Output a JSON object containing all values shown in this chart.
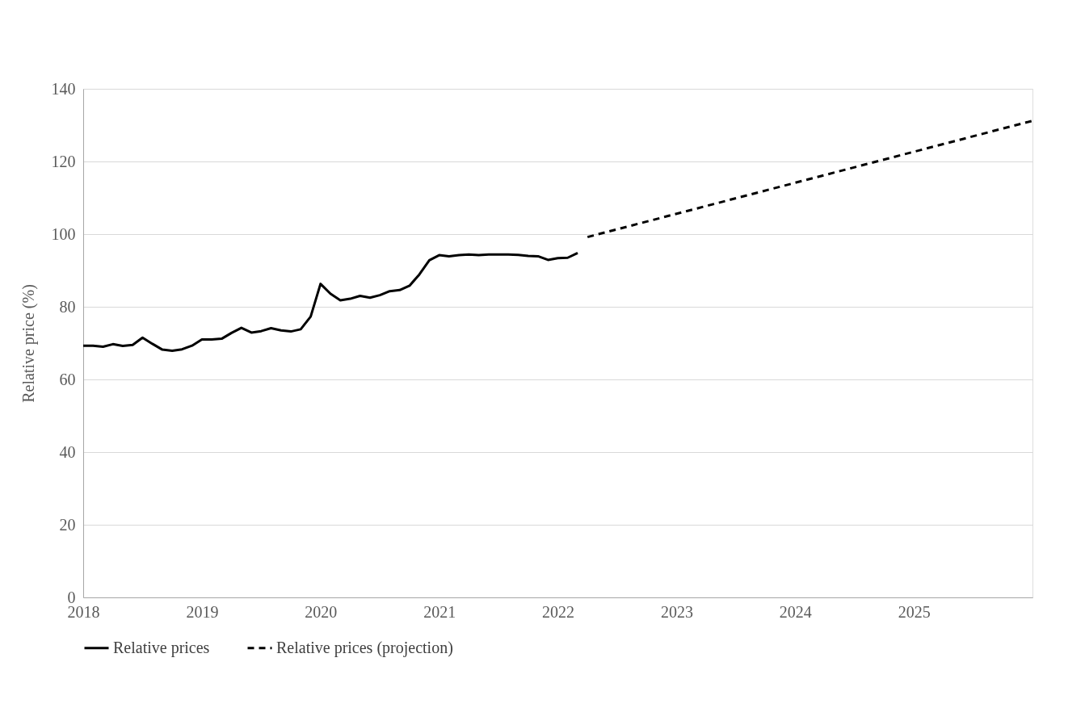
{
  "chart_data": {
    "type": "line",
    "ylabel": "Relative price (%)",
    "xlim": [
      2018,
      2026
    ],
    "xticks": [
      2018,
      2019,
      2020,
      2021,
      2022,
      2023,
      2024,
      2025
    ],
    "ylim": [
      0,
      140
    ],
    "yticks": [
      0,
      20,
      40,
      60,
      80,
      100,
      120,
      140
    ],
    "grid": "y",
    "legend": "bottom",
    "series": [
      {
        "name": "Relative prices",
        "color": "#000000",
        "line_style": "solid",
        "x": [
          2018,
          2018.083,
          2018.167,
          2018.25,
          2018.333,
          2018.417,
          2018.5,
          2018.583,
          2018.667,
          2018.75,
          2018.833,
          2018.917,
          2019,
          2019.083,
          2019.167,
          2019.25,
          2019.333,
          2019.417,
          2019.5,
          2019.583,
          2019.667,
          2019.75,
          2019.833,
          2019.917,
          2020,
          2020.083,
          2020.167,
          2020.25,
          2020.333,
          2020.417,
          2020.5,
          2020.583,
          2020.667,
          2020.75,
          2020.833,
          2020.917,
          2021,
          2021.083,
          2021.167,
          2021.25,
          2021.333,
          2021.417,
          2021.5,
          2021.583,
          2021.667,
          2021.75,
          2021.833,
          2021.917,
          2022,
          2022.083,
          2022.167
        ],
        "values": [
          69.3,
          69.3,
          69.0,
          69.7,
          69.2,
          69.5,
          71.5,
          69.8,
          68.2,
          67.9,
          68.3,
          69.3,
          71.0,
          71.0,
          71.2,
          72.8,
          74.2,
          72.9,
          73.3,
          74.1,
          73.5,
          73.2,
          73.8,
          77.3,
          86.3,
          83.6,
          81.8,
          82.2,
          83.0,
          82.5,
          83.2,
          84.3,
          84.6,
          85.8,
          88.9,
          92.8,
          94.2,
          93.9,
          94.2,
          94.4,
          94.2,
          94.4,
          94.4,
          94.4,
          94.3,
          94.0,
          93.9,
          92.9,
          93.4,
          93.5,
          94.8
        ]
      },
      {
        "name": "Relative prices (projection)",
        "color": "#000000",
        "line_style": "dashed",
        "x": [
          2022.25,
          2026
        ],
        "values": [
          99.2,
          131.2
        ]
      }
    ]
  }
}
